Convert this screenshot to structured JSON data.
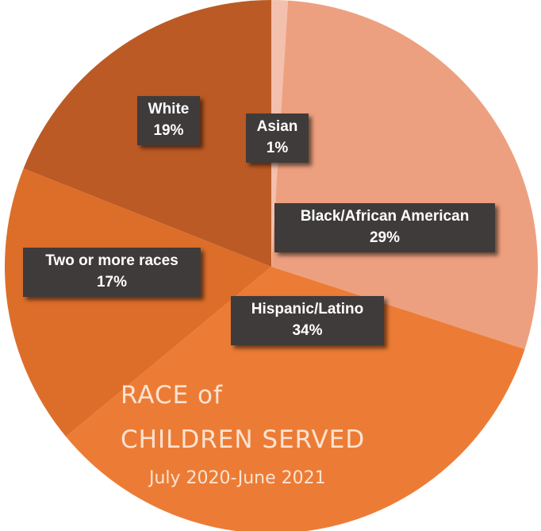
{
  "chart_data": {
    "type": "pie",
    "title_line1": "RACE of",
    "title_line2": "CHILDREN SERVED",
    "subtitle": "July 2020-June 2021",
    "slices": [
      {
        "label": "Asian",
        "pct_text": "1%",
        "value": 1,
        "color": "#f3c0ad"
      },
      {
        "label": "Black/African American",
        "pct_text": "29%",
        "value": 29,
        "color": "#eda07f"
      },
      {
        "label": "Hispanic/Latino",
        "pct_text": "34%",
        "value": 34,
        "color": "#ec7c35"
      },
      {
        "label": "Two or more races",
        "pct_text": "17%",
        "value": 17,
        "color": "#dc6e2a"
      },
      {
        "label": "White",
        "pct_text": "19%",
        "value": 19,
        "color": "#bc5a25"
      }
    ]
  }
}
